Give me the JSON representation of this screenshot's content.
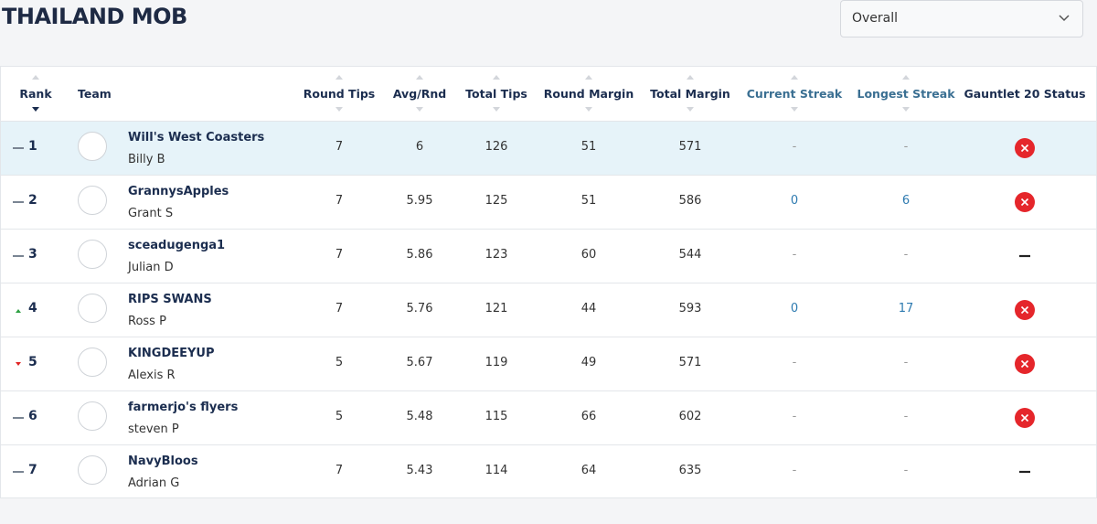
{
  "header": {
    "title": "THAILAND MOB",
    "filter": "Overall"
  },
  "table": {
    "columns": [
      "Rank",
      "Team",
      "Round Tips",
      "Avg/Rnd",
      "Total Tips",
      "Round Margin",
      "Total Margin",
      "Current Streak",
      "Longest Streak",
      "Gauntlet 20 Status"
    ],
    "rows": [
      {
        "rank": 1,
        "movement": "same",
        "highlight": true,
        "team": "Will's West Coasters",
        "player": "Billy B",
        "cells": [
          7,
          6,
          126,
          51,
          571,
          "-",
          "-"
        ],
        "status": "out"
      },
      {
        "rank": 2,
        "movement": "same",
        "highlight": false,
        "team": "GrannysApples",
        "player": "Grant S",
        "cells": [
          7,
          5.95,
          125,
          51,
          586,
          0,
          6
        ],
        "status": "out"
      },
      {
        "rank": 3,
        "movement": "same",
        "highlight": false,
        "team": "sceadugenga1",
        "player": "Julian D",
        "cells": [
          7,
          5.86,
          123,
          60,
          544,
          "-",
          "-"
        ],
        "status": "none"
      },
      {
        "rank": 4,
        "movement": "up",
        "highlight": false,
        "team": "RIPS SWANS",
        "player": "Ross P",
        "cells": [
          7,
          5.76,
          121,
          44,
          593,
          0,
          17
        ],
        "status": "out"
      },
      {
        "rank": 5,
        "movement": "down",
        "highlight": false,
        "team": "KINGDEEYUP",
        "player": "Alexis R",
        "cells": [
          5,
          5.67,
          119,
          49,
          571,
          "-",
          "-"
        ],
        "status": "out"
      },
      {
        "rank": 6,
        "movement": "same",
        "highlight": false,
        "team": "farmerjo's flyers",
        "player": "steven P",
        "cells": [
          5,
          5.48,
          115,
          66,
          602,
          "-",
          "-"
        ],
        "status": "out"
      },
      {
        "rank": 7,
        "movement": "same",
        "highlight": false,
        "team": "NavyBloos",
        "player": "Adrian G",
        "cells": [
          7,
          5.43,
          114,
          64,
          635,
          "-",
          "-"
        ],
        "status": "none"
      }
    ]
  }
}
